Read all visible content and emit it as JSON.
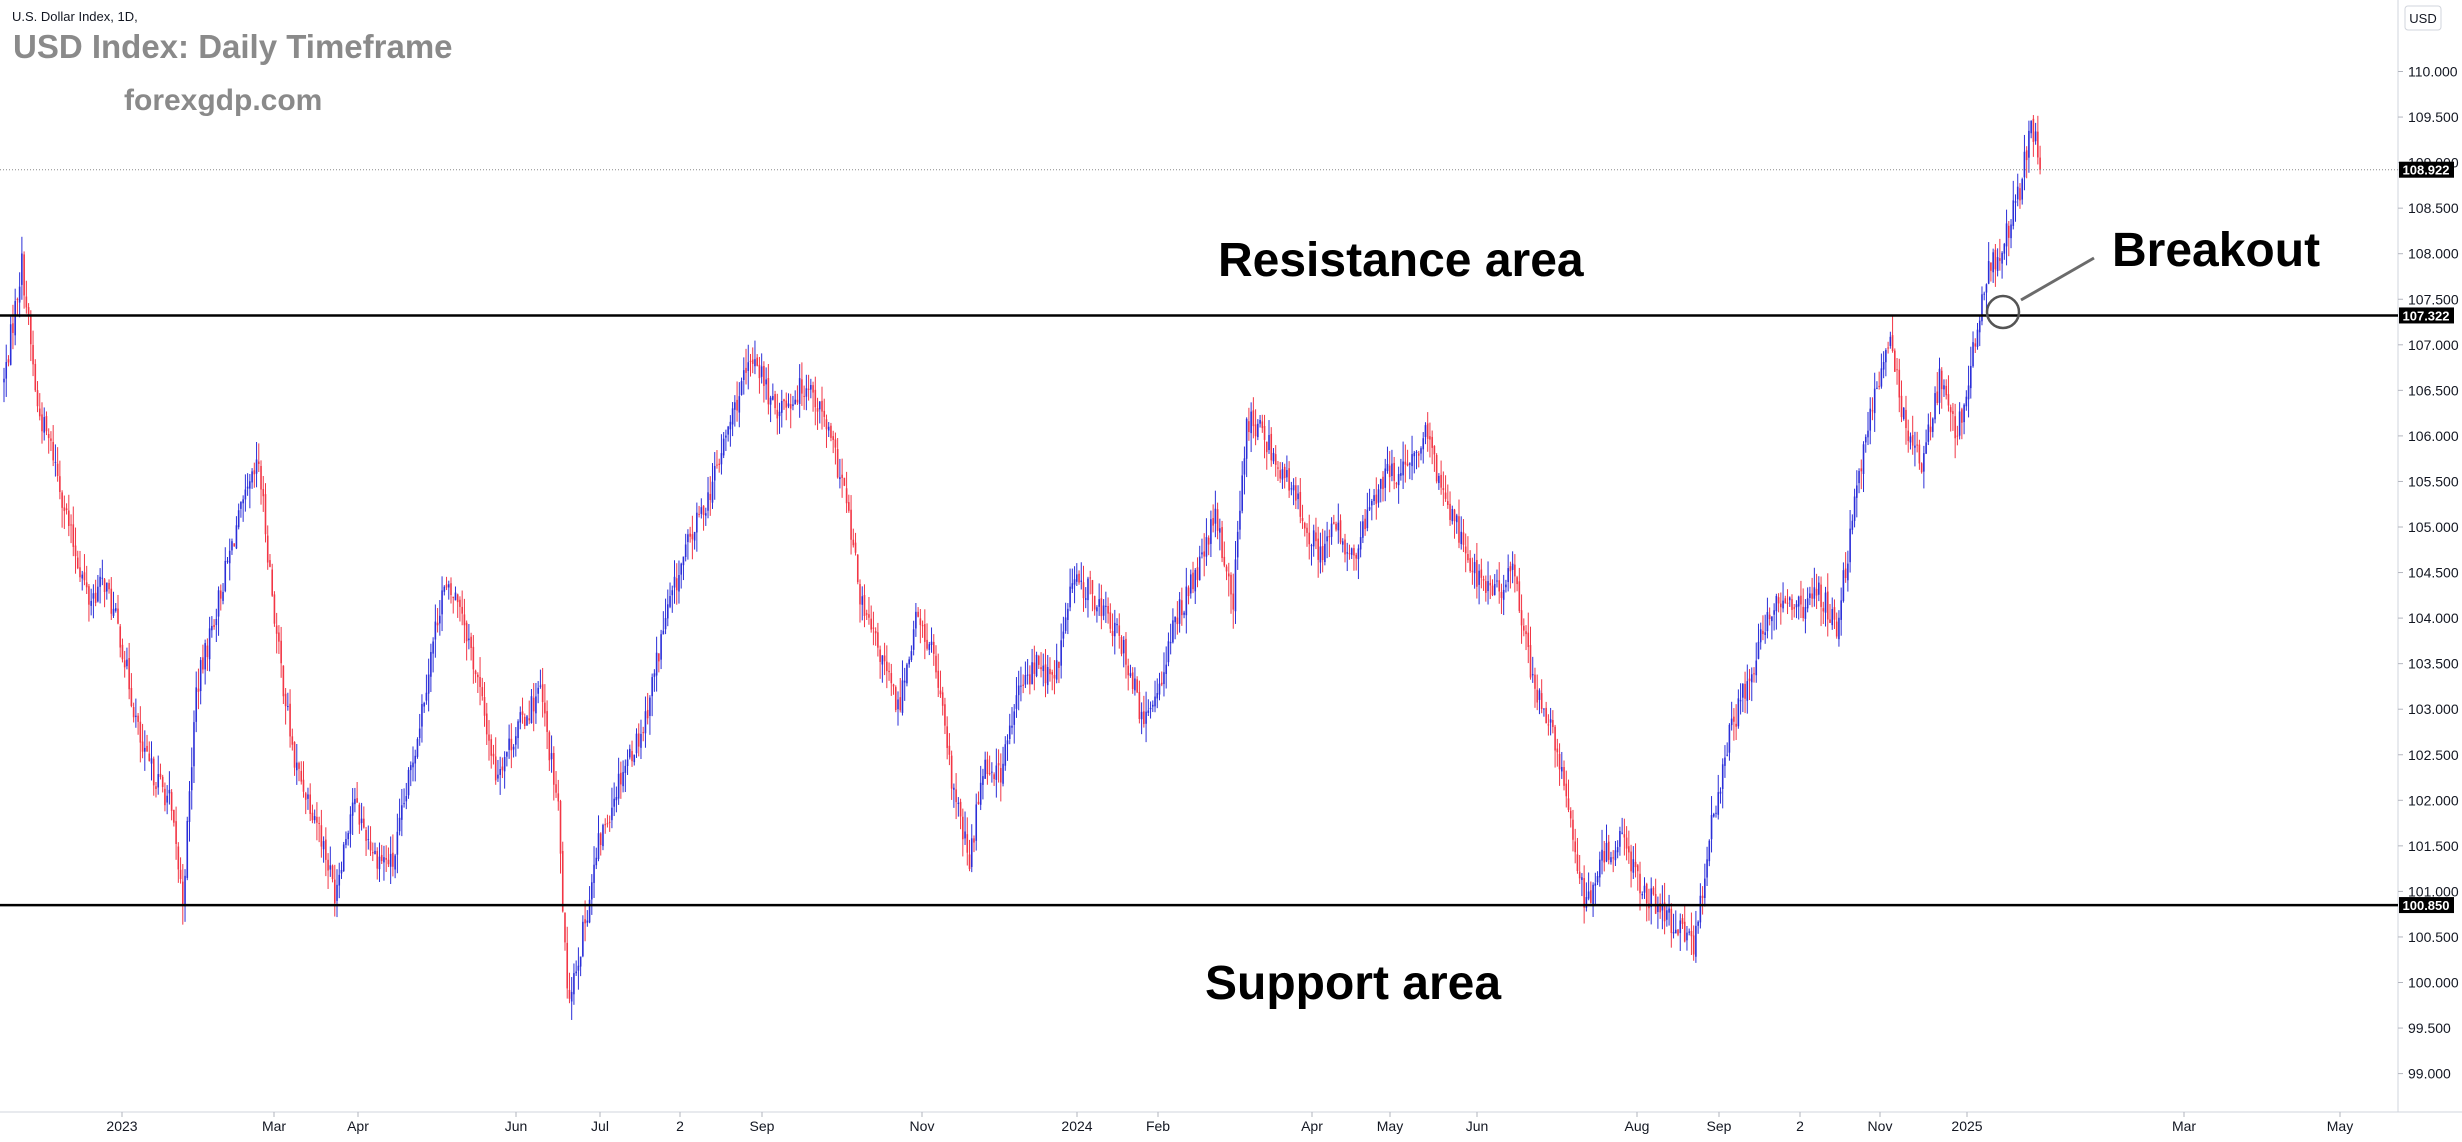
{
  "header": {
    "symbol_line": "U.S. Dollar Index, 1D,",
    "title": "USD Index: Daily Timeframe",
    "watermark": "forexgdp.com"
  },
  "currency_box": "USD",
  "annotations": {
    "resistance": "Resistance area",
    "support": "Support area",
    "breakout": "Breakout"
  },
  "chart_data": {
    "type": "candlestick",
    "title": "USD Index: Daily Timeframe",
    "xlabel": "",
    "ylabel": "",
    "ylim": [
      98.6,
      110.8
    ],
    "y_ticks": [
      "99.000",
      "99.500",
      "100.000",
      "100.500",
      "101.000",
      "101.500",
      "102.000",
      "102.500",
      "103.000",
      "103.500",
      "104.000",
      "104.500",
      "105.000",
      "105.500",
      "106.000",
      "106.500",
      "107.000",
      "107.500",
      "108.000",
      "108.500",
      "109.000",
      "109.500",
      "110.000"
    ],
    "x_ticks": [
      "2023",
      "Mar",
      "Apr",
      "Jun",
      "Jul",
      "2",
      "Sep",
      "Nov",
      "2024",
      "Feb",
      "Apr",
      "May",
      "Jun",
      "Aug",
      "Sep",
      "2",
      "Nov",
      "2025",
      "Mar",
      "May"
    ],
    "levels": [
      {
        "name": "Resistance area",
        "value": 107.322,
        "label": "107.322"
      },
      {
        "name": "Support area",
        "value": 100.85,
        "label": "100.850"
      }
    ],
    "last_price": {
      "value": 108.922,
      "label": "108.922"
    },
    "up_color": "#2b2fd8",
    "down_color": "#f23645",
    "line_color": "#000000",
    "path": [
      [
        0,
        106.6
      ],
      [
        8,
        107.9
      ],
      [
        15,
        106.3
      ],
      [
        22,
        105.8
      ],
      [
        30,
        104.9
      ],
      [
        38,
        104.2
      ],
      [
        45,
        104.4
      ],
      [
        52,
        103.8
      ],
      [
        62,
        102.5
      ],
      [
        74,
        102.0
      ],
      [
        80,
        100.9
      ],
      [
        86,
        103.2
      ],
      [
        94,
        104.0
      ],
      [
        104,
        105.0
      ],
      [
        114,
        105.7
      ],
      [
        122,
        103.8
      ],
      [
        130,
        102.4
      ],
      [
        140,
        101.8
      ],
      [
        148,
        101.0
      ],
      [
        156,
        102.0
      ],
      [
        166,
        101.4
      ],
      [
        174,
        101.3
      ],
      [
        184,
        102.6
      ],
      [
        196,
        104.3
      ],
      [
        204,
        104.2
      ],
      [
        212,
        103.3
      ],
      [
        220,
        102.3
      ],
      [
        230,
        102.8
      ],
      [
        240,
        103.2
      ],
      [
        248,
        101.9
      ],
      [
        252,
        99.8
      ],
      [
        258,
        100.4
      ],
      [
        266,
        101.5
      ],
      [
        276,
        102.3
      ],
      [
        286,
        102.8
      ],
      [
        296,
        104.0
      ],
      [
        306,
        104.8
      ],
      [
        316,
        105.4
      ],
      [
        328,
        106.4
      ],
      [
        336,
        106.9
      ],
      [
        344,
        106.3
      ],
      [
        352,
        106.4
      ],
      [
        360,
        106.6
      ],
      [
        368,
        106.1
      ],
      [
        376,
        105.4
      ],
      [
        384,
        104.1
      ],
      [
        392,
        103.6
      ],
      [
        400,
        103.0
      ],
      [
        408,
        104.0
      ],
      [
        416,
        103.6
      ],
      [
        424,
        102.2
      ],
      [
        432,
        101.3
      ],
      [
        438,
        102.4
      ],
      [
        446,
        102.3
      ],
      [
        454,
        103.2
      ],
      [
        462,
        103.5
      ],
      [
        470,
        103.3
      ],
      [
        478,
        104.4
      ],
      [
        486,
        104.3
      ],
      [
        494,
        104.0
      ],
      [
        502,
        103.6
      ],
      [
        510,
        102.8
      ],
      [
        518,
        103.4
      ],
      [
        526,
        104.1
      ],
      [
        534,
        104.5
      ],
      [
        542,
        105.1
      ],
      [
        550,
        104.2
      ],
      [
        556,
        106.2
      ],
      [
        564,
        106.0
      ],
      [
        572,
        105.6
      ],
      [
        580,
        105.2
      ],
      [
        588,
        104.7
      ],
      [
        596,
        105.0
      ],
      [
        604,
        104.6
      ],
      [
        612,
        105.3
      ],
      [
        620,
        105.6
      ],
      [
        628,
        105.6
      ],
      [
        636,
        106.0
      ],
      [
        644,
        105.4
      ],
      [
        652,
        104.9
      ],
      [
        660,
        104.4
      ],
      [
        668,
        104.3
      ],
      [
        676,
        104.5
      ],
      [
        684,
        103.3
      ],
      [
        692,
        102.8
      ],
      [
        700,
        101.9
      ],
      [
        708,
        100.8
      ],
      [
        716,
        101.4
      ],
      [
        724,
        101.6
      ],
      [
        732,
        101.1
      ],
      [
        740,
        100.8
      ],
      [
        748,
        100.6
      ],
      [
        756,
        100.4
      ],
      [
        764,
        101.7
      ],
      [
        772,
        102.7
      ],
      [
        780,
        103.3
      ],
      [
        788,
        103.9
      ],
      [
        796,
        104.3
      ],
      [
        804,
        104.1
      ],
      [
        812,
        104.3
      ],
      [
        820,
        103.9
      ],
      [
        828,
        105.2
      ],
      [
        836,
        106.4
      ],
      [
        844,
        107.0
      ],
      [
        850,
        106.2
      ],
      [
        858,
        105.7
      ],
      [
        866,
        106.6
      ],
      [
        874,
        106.0
      ],
      [
        880,
        106.8
      ],
      [
        888,
        107.8
      ],
      [
        896,
        108.2
      ],
      [
        902,
        108.7
      ],
      [
        907,
        109.4
      ],
      [
        912,
        108.92
      ]
    ]
  }
}
